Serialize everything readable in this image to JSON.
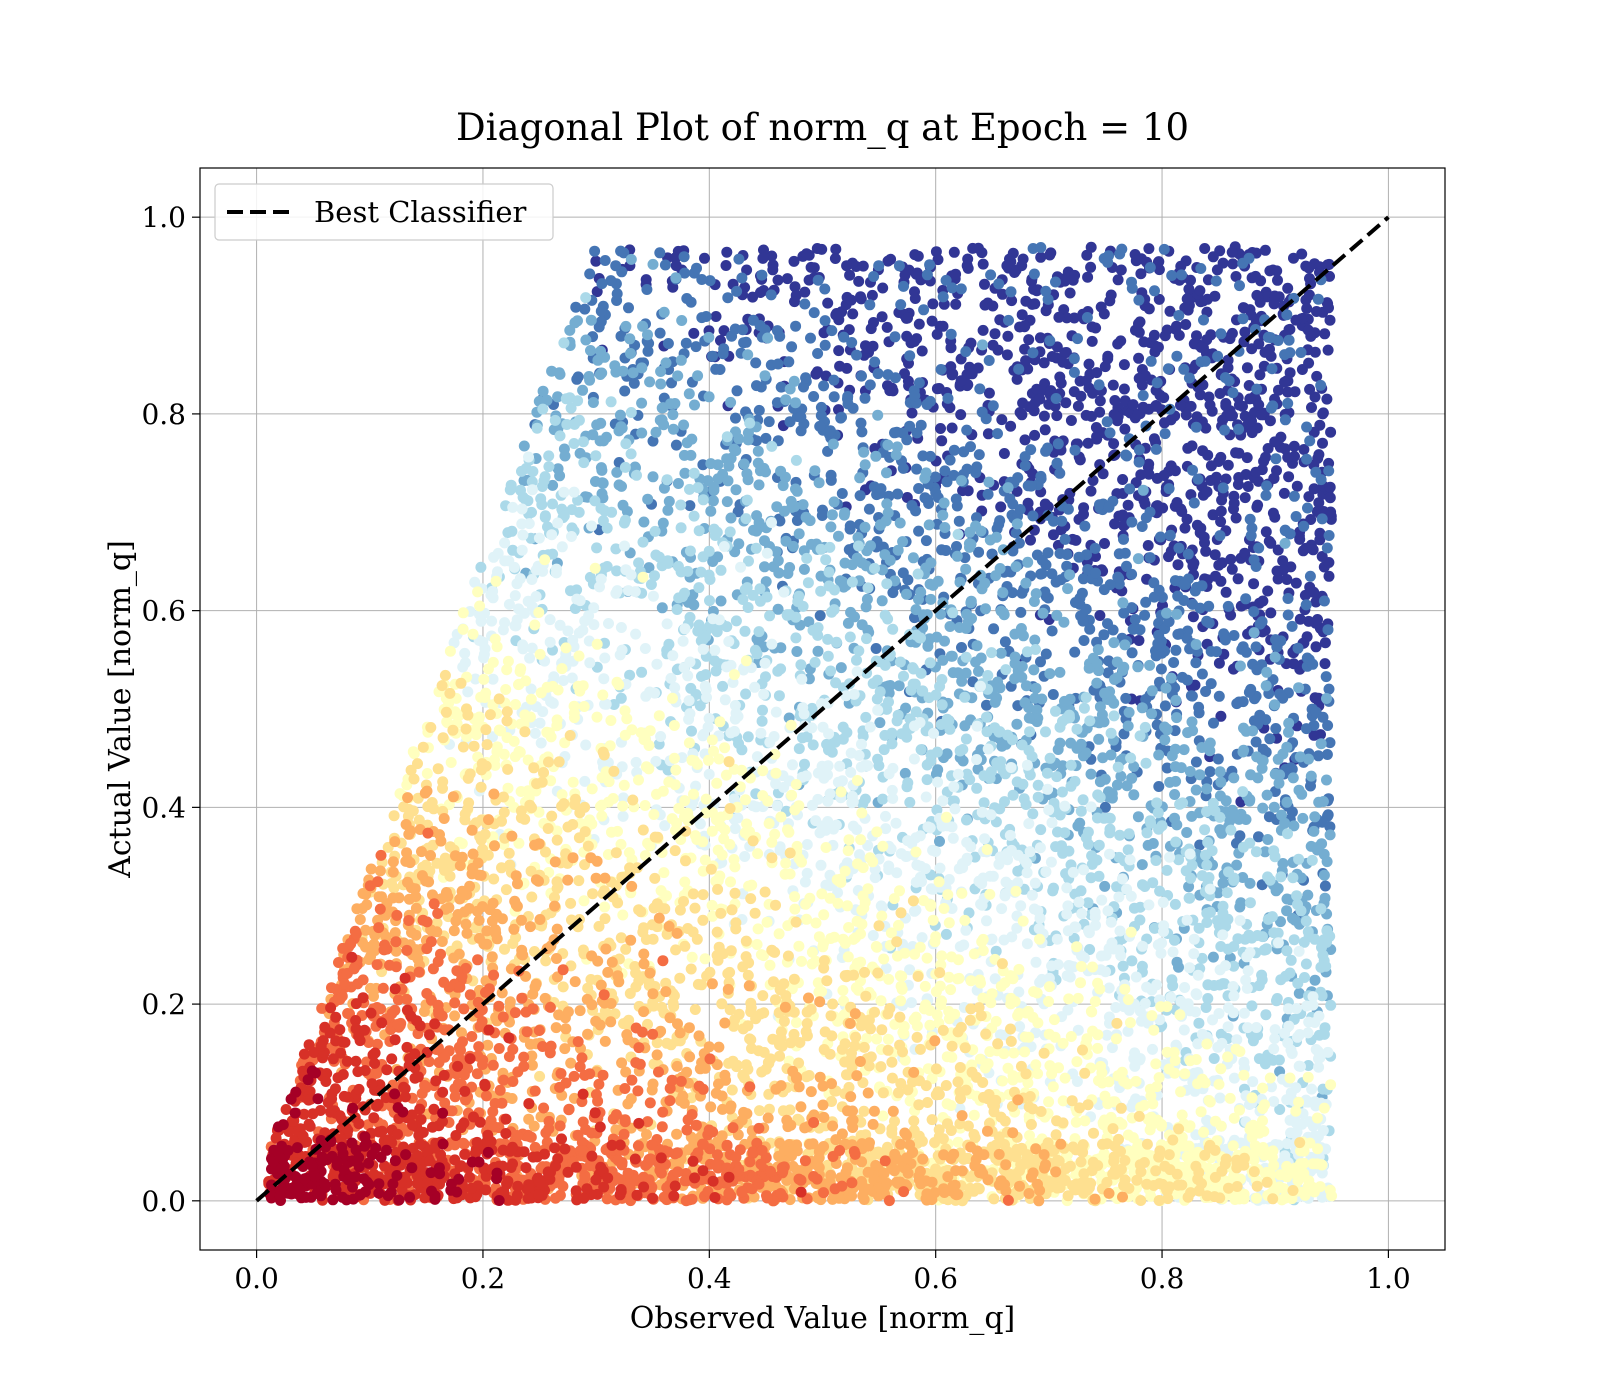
{
  "chart_data": {
    "type": "scatter",
    "title": "Diagonal Plot of norm_q at Epoch = 10",
    "xlabel": "Observed Value [norm_q]",
    "ylabel": "Actual Value [norm_q]",
    "xlim": [
      -0.05,
      1.05
    ],
    "ylim": [
      -0.05,
      1.05
    ],
    "x_ticks": [
      "0.0",
      "0.2",
      "0.4",
      "0.6",
      "0.8",
      "1.0"
    ],
    "y_ticks": [
      "0.0",
      "0.2",
      "0.4",
      "0.6",
      "0.8",
      "1.0"
    ],
    "tick_values": [
      0.0,
      0.2,
      0.4,
      0.6,
      0.8,
      1.0
    ],
    "grid": true,
    "legend": {
      "placement": "upper-left",
      "entries": [
        "Best Classifier"
      ]
    },
    "reference_line": {
      "name": "Best Classifier",
      "style": "dashed",
      "color": "#000000",
      "x": [
        0.0,
        1.0
      ],
      "y": [
        0.0,
        1.0
      ]
    },
    "point_colormap": "RdYlBu",
    "colormap_colors": [
      "#a50026",
      "#d73027",
      "#f46d43",
      "#fdae61",
      "#fee090",
      "#ffffbf",
      "#e0f3f8",
      "#abd9e9",
      "#74add1",
      "#4575b4",
      "#313695"
    ],
    "point_distribution": {
      "approx_point_count": 20000,
      "x_range": [
        0.01,
        0.95
      ],
      "y_range": [
        0.0,
        1.0
      ],
      "region": "points fill the area between y = 0 and an upper envelope rising steeply from (0.01, 0.0) to about y = 0.95 near x = 0.35, then roughly flat up to x = 0.95",
      "color_trend": "warm (red/orange/yellow) near the origin and low y values, shifting to cool (light blue to dark blue) as x and y increase"
    }
  }
}
